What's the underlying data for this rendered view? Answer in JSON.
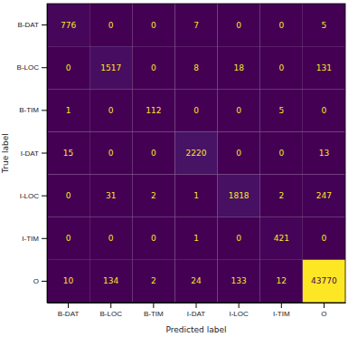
{
  "chart_data": {
    "type": "heatmap",
    "x_label": "Predicted label",
    "y_label": "True label",
    "x_categories": [
      "B-DAT",
      "B-LOC",
      "B-TIM",
      "I-DAT",
      "I-LOC",
      "I-TIM",
      "O"
    ],
    "y_categories": [
      "B-DAT",
      "B-LOC",
      "B-TIM",
      "I-DAT",
      "I-LOC",
      "I-TIM",
      "O"
    ],
    "cells": [
      [
        776,
        0,
        0,
        7,
        0,
        0,
        5
      ],
      [
        0,
        1517,
        0,
        8,
        18,
        0,
        131
      ],
      [
        1,
        0,
        112,
        0,
        0,
        5,
        0
      ],
      [
        15,
        0,
        0,
        2220,
        0,
        0,
        13
      ],
      [
        0,
        31,
        2,
        1,
        1818,
        2,
        247
      ],
      [
        0,
        0,
        0,
        1,
        0,
        421,
        0
      ],
      [
        10,
        134,
        2,
        24,
        133,
        12,
        43770
      ]
    ],
    "data_labels": true
  }
}
